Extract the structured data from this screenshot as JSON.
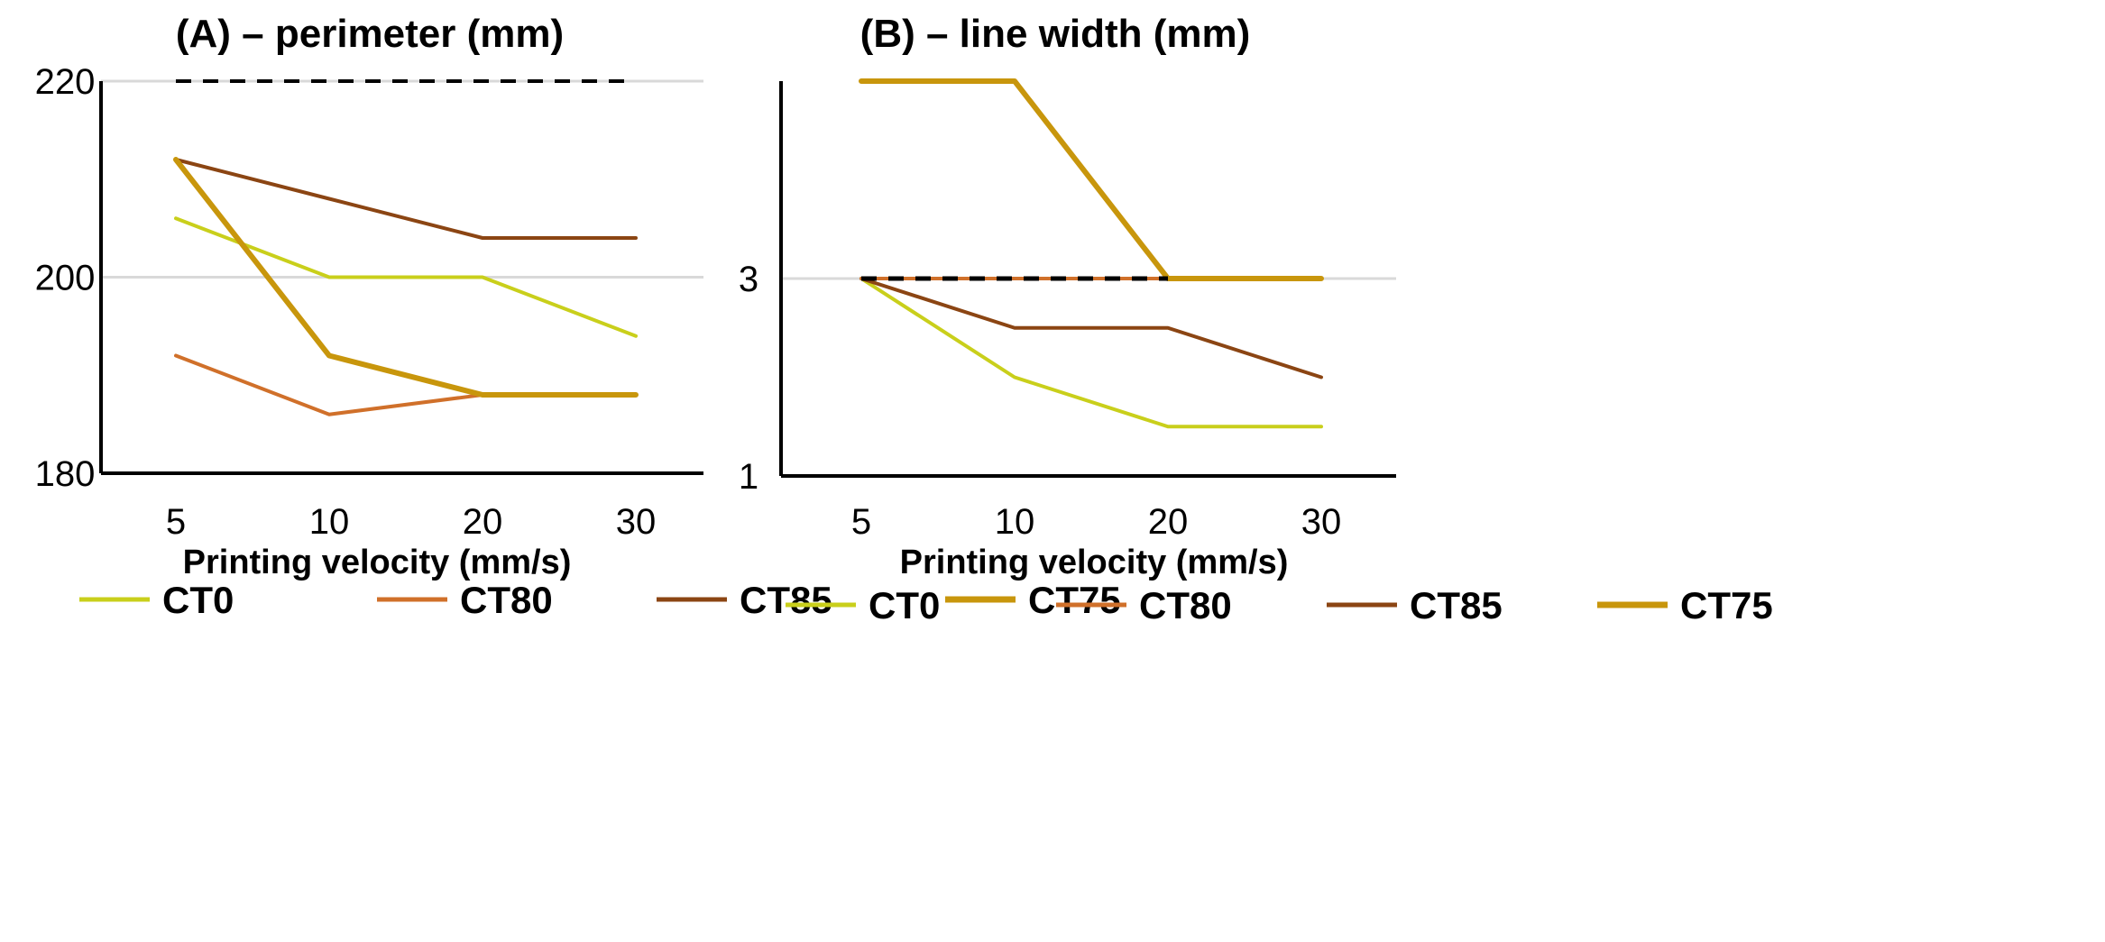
{
  "chart_data": [
    {
      "type": "line",
      "title": "(A) – perimeter (mm)",
      "xlabel": "Printing velocity (mm/s)",
      "ylabel": "",
      "categories": [
        "5",
        "10",
        "20",
        "30"
      ],
      "ylim": [
        180,
        220
      ],
      "yticks": [
        "180",
        "200",
        "220"
      ],
      "reference_line": {
        "value": 220,
        "style": "dashed",
        "color": "#000000"
      },
      "series": [
        {
          "name": "CT0",
          "color": "#c9cf1b",
          "values": [
            206,
            200,
            200,
            194
          ]
        },
        {
          "name": "CT80",
          "color": "#d0702a",
          "values": [
            192,
            186,
            188,
            188
          ]
        },
        {
          "name": "CT85",
          "color": "#8b4513",
          "values": [
            212,
            208,
            204,
            204
          ]
        },
        {
          "name": "CT75",
          "color": "#c8960c",
          "values": [
            212,
            192,
            188,
            188
          ]
        }
      ],
      "legend": [
        "CT0",
        "CT80",
        "CT85",
        "CT75"
      ]
    },
    {
      "type": "line",
      "title": "(B) – line width (mm)",
      "xlabel": "Printing velocity (mm/s)",
      "ylabel": "",
      "categories": [
        "5",
        "10",
        "20",
        "30"
      ],
      "ylim": [
        1,
        5
      ],
      "yticks": [
        "1",
        "3"
      ],
      "reference_line": {
        "value": 3,
        "style": "dashed",
        "color": "#000000"
      },
      "series": [
        {
          "name": "CT0",
          "color": "#c9cf1b",
          "values": [
            3,
            2,
            1.5,
            1.5
          ]
        },
        {
          "name": "CT80",
          "color": "#d0702a",
          "values": [
            3,
            3,
            3,
            3
          ]
        },
        {
          "name": "CT85",
          "color": "#8b4513",
          "values": [
            3,
            2.5,
            2.5,
            2
          ]
        },
        {
          "name": "CT75",
          "color": "#c8960c",
          "values": [
            5,
            5,
            3,
            3
          ]
        }
      ],
      "legend": [
        "CT0",
        "CT80",
        "CT85",
        "CT75"
      ]
    }
  ]
}
